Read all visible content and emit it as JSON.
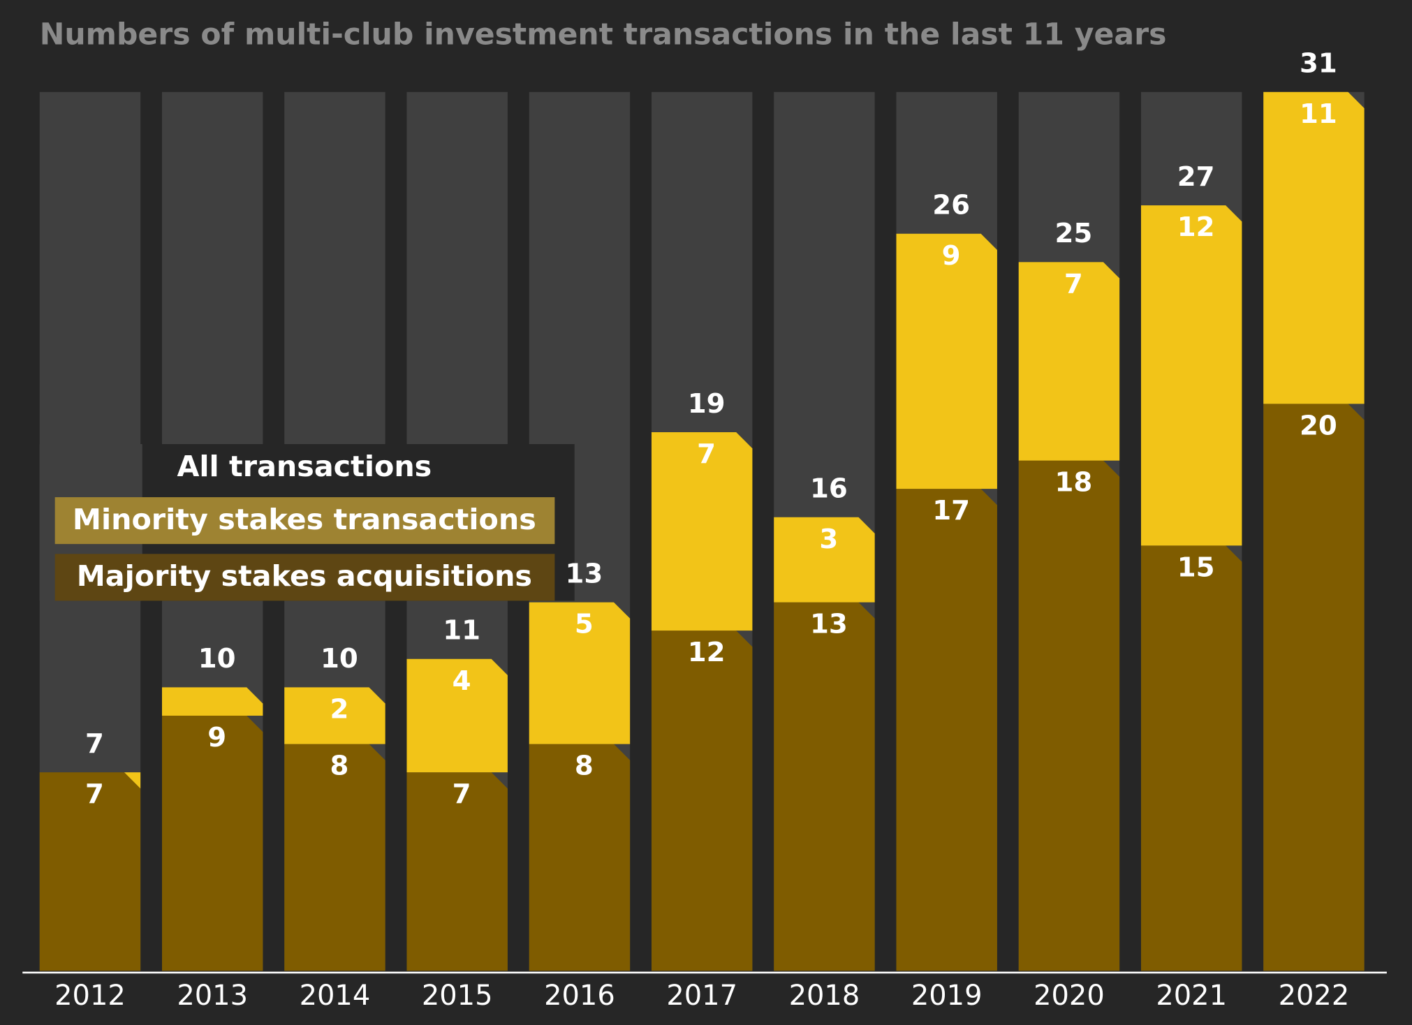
{
  "chart_data": {
    "type": "stacked-bar",
    "title": "Numbers of multi-club investment transactions in the last 11 years",
    "categories": [
      "2012",
      "2013",
      "2014",
      "2015",
      "2016",
      "2017",
      "2018",
      "2019",
      "2020",
      "2021",
      "2022"
    ],
    "series": [
      {
        "name": "Majority stakes acquisitions",
        "color": "#7f5c00",
        "legend_color": "#5e4613",
        "values": [
          7,
          9,
          8,
          7,
          8,
          12,
          13,
          17,
          18,
          15,
          20
        ]
      },
      {
        "name": "Minority stakes transactions",
        "color": "#f2c418",
        "legend_color": "#9e8332",
        "values": [
          0,
          1,
          2,
          4,
          5,
          7,
          3,
          9,
          7,
          12,
          11
        ],
        "value_labels": [
          null,
          null,
          "2",
          "4",
          "5",
          "7",
          "3",
          "9",
          "7",
          "12",
          "11"
        ]
      }
    ],
    "totals": {
      "name": "All transactions",
      "color": "#404040",
      "values": [
        7,
        10,
        10,
        11,
        13,
        19,
        16,
        26,
        25,
        27,
        31
      ]
    },
    "ylim": [
      0,
      31
    ]
  }
}
